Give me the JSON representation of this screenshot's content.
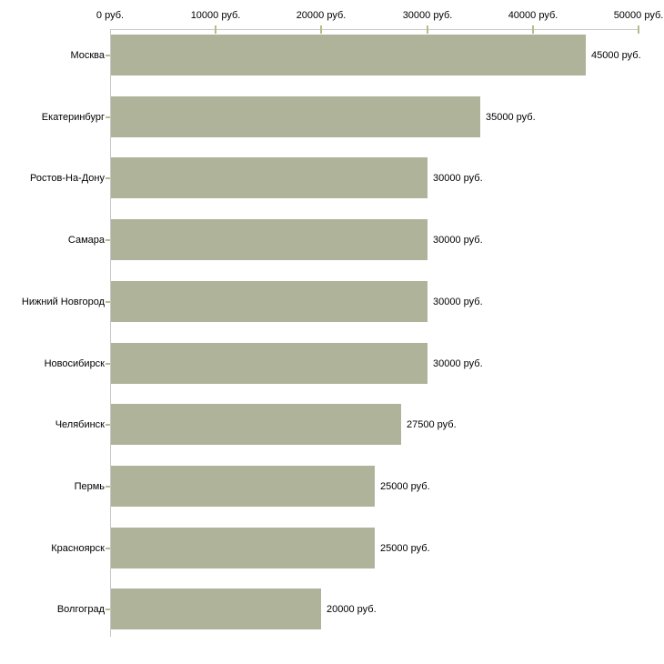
{
  "chart_data": {
    "type": "bar",
    "orientation": "horizontal",
    "title": "",
    "xlabel": "",
    "ylabel": "",
    "grid": false,
    "legend": false,
    "categories": [
      "Москва",
      "Екатеринбург",
      "Ростов-На-Дону",
      "Самара",
      "Нижний Новгород",
      "Новосибирск",
      "Челябинск",
      "Пермь",
      "Красноярск",
      "Волгоград"
    ],
    "values": [
      45000,
      35000,
      30000,
      30000,
      30000,
      30000,
      27500,
      25000,
      25000,
      20000
    ],
    "value_labels": [
      "45000 руб.",
      "35000 руб.",
      "30000 руб.",
      "30000 руб.",
      "30000 руб.",
      "30000 руб.",
      "27500 руб.",
      "25000 руб.",
      "25000 руб.",
      "20000 руб."
    ],
    "x_axis": {
      "position": "top",
      "min": 0,
      "max": 50000,
      "tick_values": [
        0,
        10000,
        20000,
        30000,
        40000,
        50000
      ],
      "tick_labels": [
        "0 руб.",
        "10000 руб.",
        "20000 руб.",
        "30000 руб.",
        "40000 руб.",
        "50000 руб."
      ]
    },
    "colors": {
      "bar": "#aeb399",
      "axis_line": "#c9c9c9",
      "tick_mark": "#b9ba8c",
      "text": "#000000",
      "background": "#ffffff"
    }
  }
}
